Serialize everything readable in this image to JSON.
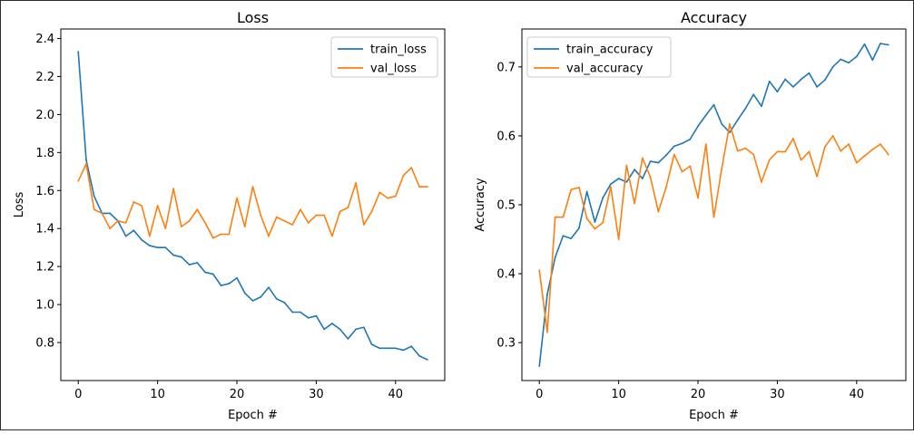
{
  "chart_data": [
    {
      "type": "line",
      "title": "Loss",
      "xlabel": "Epoch #",
      "ylabel": "Loss",
      "xlim": [
        -2.2,
        46.2
      ],
      "ylim": [
        0.6,
        2.45
      ],
      "x_ticks": [
        0,
        10,
        20,
        30,
        40
      ],
      "y_ticks": [
        0.8,
        1.0,
        1.2,
        1.4,
        1.6,
        1.8,
        2.0,
        2.2,
        2.4
      ],
      "y_tick_labels": [
        "0.8",
        "1.0",
        "1.2",
        "1.4",
        "1.6",
        "1.8",
        "2.0",
        "2.2",
        "2.4"
      ],
      "legend_position": "top-right",
      "x": [
        0,
        1,
        2,
        3,
        4,
        5,
        6,
        7,
        8,
        9,
        10,
        11,
        12,
        13,
        14,
        15,
        16,
        17,
        18,
        19,
        20,
        21,
        22,
        23,
        24,
        25,
        26,
        27,
        28,
        29,
        30,
        31,
        32,
        33,
        34,
        35,
        36,
        37,
        38,
        39,
        40,
        41,
        42,
        43,
        44
      ],
      "series": [
        {
          "name": "train_loss",
          "color": "#1f77b4",
          "values": [
            2.33,
            1.76,
            1.57,
            1.48,
            1.48,
            1.44,
            1.36,
            1.39,
            1.34,
            1.31,
            1.3,
            1.3,
            1.26,
            1.25,
            1.21,
            1.22,
            1.17,
            1.16,
            1.1,
            1.11,
            1.14,
            1.06,
            1.02,
            1.04,
            1.09,
            1.03,
            1.01,
            0.96,
            0.96,
            0.93,
            0.94,
            0.87,
            0.9,
            0.87,
            0.82,
            0.87,
            0.88,
            0.79,
            0.77,
            0.77,
            0.77,
            0.76,
            0.78,
            0.73,
            0.71
          ]
        },
        {
          "name": "val_loss",
          "color": "#ff7f0e",
          "values": [
            1.65,
            1.74,
            1.5,
            1.48,
            1.4,
            1.44,
            1.43,
            1.54,
            1.52,
            1.36,
            1.52,
            1.4,
            1.61,
            1.41,
            1.44,
            1.5,
            1.43,
            1.35,
            1.37,
            1.37,
            1.56,
            1.41,
            1.62,
            1.47,
            1.36,
            1.46,
            1.44,
            1.42,
            1.5,
            1.43,
            1.47,
            1.47,
            1.36,
            1.49,
            1.51,
            1.64,
            1.42,
            1.49,
            1.59,
            1.56,
            1.57,
            1.68,
            1.72,
            1.62,
            1.62
          ]
        }
      ]
    },
    {
      "type": "line",
      "title": "Accuracy",
      "xlabel": "Epoch #",
      "ylabel": "Accuracy",
      "xlim": [
        -2.2,
        46.2
      ],
      "ylim": [
        0.245,
        0.755
      ],
      "x_ticks": [
        0,
        10,
        20,
        30,
        40
      ],
      "y_ticks": [
        0.3,
        0.4,
        0.5,
        0.6,
        0.7
      ],
      "y_tick_labels": [
        "0.3",
        "0.4",
        "0.5",
        "0.6",
        "0.7"
      ],
      "legend_position": "top-left",
      "x": [
        0,
        1,
        2,
        3,
        4,
        5,
        6,
        7,
        8,
        9,
        10,
        11,
        12,
        13,
        14,
        15,
        16,
        17,
        18,
        19,
        20,
        21,
        22,
        23,
        24,
        25,
        26,
        27,
        28,
        29,
        30,
        31,
        32,
        33,
        34,
        35,
        36,
        37,
        38,
        39,
        40,
        41,
        42,
        43,
        44
      ],
      "series": [
        {
          "name": "train_accuracy",
          "color": "#1f77b4",
          "values": [
            0.266,
            0.37,
            0.424,
            0.455,
            0.451,
            0.466,
            0.519,
            0.475,
            0.51,
            0.53,
            0.538,
            0.533,
            0.551,
            0.538,
            0.563,
            0.561,
            0.572,
            0.585,
            0.589,
            0.595,
            0.614,
            0.63,
            0.645,
            0.617,
            0.605,
            0.623,
            0.64,
            0.66,
            0.643,
            0.679,
            0.664,
            0.682,
            0.671,
            0.682,
            0.691,
            0.671,
            0.681,
            0.7,
            0.711,
            0.706,
            0.715,
            0.733,
            0.71,
            0.734,
            0.732
          ]
        },
        {
          "name": "val_accuracy",
          "color": "#ff7f0e",
          "values": [
            0.405,
            0.315,
            0.482,
            0.482,
            0.522,
            0.525,
            0.48,
            0.465,
            0.474,
            0.526,
            0.45,
            0.557,
            0.502,
            0.568,
            0.54,
            0.49,
            0.526,
            0.573,
            0.548,
            0.556,
            0.51,
            0.588,
            0.482,
            0.553,
            0.617,
            0.578,
            0.582,
            0.573,
            0.533,
            0.565,
            0.577,
            0.577,
            0.596,
            0.565,
            0.577,
            0.541,
            0.584,
            0.6,
            0.578,
            0.588,
            0.561,
            0.571,
            0.58,
            0.588,
            0.573
          ]
        }
      ]
    }
  ]
}
